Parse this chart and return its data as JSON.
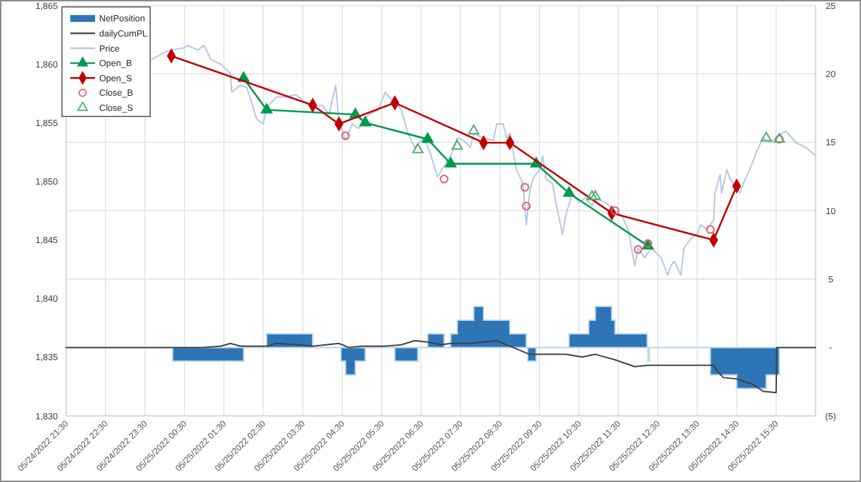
{
  "chart_data": {
    "type": "line",
    "xlim": [
      "2022-05-24T21:30",
      "2022-05-25T16:30"
    ],
    "xticks": [
      {
        "value": "2022-05-24T21:30",
        "label": "05/24/2022 21:30"
      },
      {
        "value": "2022-05-24T22:30",
        "label": "05/24/2022 22:30"
      },
      {
        "value": "2022-05-24T23:30",
        "label": "05/24/2022 23:30"
      },
      {
        "value": "2022-05-25T00:30",
        "label": "05/25/2022 00:30"
      },
      {
        "value": "2022-05-25T01:30",
        "label": "05/25/2022 01:30"
      },
      {
        "value": "2022-05-25T02:30",
        "label": "05/25/2022 02:30"
      },
      {
        "value": "2022-05-25T03:30",
        "label": "05/25/2022 03:30"
      },
      {
        "value": "2022-05-25T04:30",
        "label": "05/25/2022 04:30"
      },
      {
        "value": "2022-05-25T05:30",
        "label": "05/25/2022 05:30"
      },
      {
        "value": "2022-05-25T06:30",
        "label": "05/25/2022 06:30"
      },
      {
        "value": "2022-05-25T07:30",
        "label": "05/25/2022 07:30"
      },
      {
        "value": "2022-05-25T08:30",
        "label": "05/25/2022 08:30"
      },
      {
        "value": "2022-05-25T09:30",
        "label": "05/25/2022 09:30"
      },
      {
        "value": "2022-05-25T10:30",
        "label": "05/25/2022 10:30"
      },
      {
        "value": "2022-05-25T11:30",
        "label": "05/25/2022 11:30"
      },
      {
        "value": "2022-05-25T12:30",
        "label": "05/25/2022 12:30"
      },
      {
        "value": "2022-05-25T13:30",
        "label": "05/25/2022 13:30"
      },
      {
        "value": "2022-05-25T14:30",
        "label": "05/25/2022 14:30"
      },
      {
        "value": "2022-05-25T15:30",
        "label": "05/25/2022 15:30"
      }
    ],
    "ylim": [
      1830,
      1865
    ],
    "yticks": [
      {
        "value": 1830,
        "label": "1,830"
      },
      {
        "value": 1835,
        "label": "1,835"
      },
      {
        "value": 1840,
        "label": "1,840"
      },
      {
        "value": 1845,
        "label": "1,845"
      },
      {
        "value": 1850,
        "label": "1,850"
      },
      {
        "value": 1855,
        "label": "1,855"
      },
      {
        "value": 1860,
        "label": "1,860"
      },
      {
        "value": 1865,
        "label": "1,865"
      }
    ],
    "y2lim": [
      -5,
      25
    ],
    "y2ticks": [
      {
        "value": -5,
        "label": "(5)"
      },
      {
        "value": 0,
        "label": "-"
      },
      5,
      10,
      15,
      20,
      25
    ],
    "grid": true,
    "legend": "top left",
    "series": [
      {
        "name": "NetPosition",
        "type": "area",
        "axis": "y2",
        "color": "#2e75b6",
        "x": [
          "2022-05-25T00:12",
          "2022-05-25T00:12",
          "2022-05-25T02:00",
          "2022-05-25T02:00",
          "2022-05-25T02:35",
          "2022-05-25T02:35",
          "2022-05-25T03:45",
          "2022-05-25T03:45",
          "2022-05-25T04:28",
          "2022-05-25T04:28",
          "2022-05-25T04:35",
          "2022-05-25T04:35",
          "2022-05-25T04:50",
          "2022-05-25T04:50",
          "2022-05-25T05:05",
          "2022-05-25T05:05",
          "2022-05-25T05:50",
          "2022-05-25T05:50",
          "2022-05-25T06:25",
          "2022-05-25T06:25",
          "2022-05-25T06:40",
          "2022-05-25T06:40",
          "2022-05-25T07:05",
          "2022-05-25T07:05",
          "2022-05-25T07:15",
          "2022-05-25T07:15",
          "2022-05-25T07:25",
          "2022-05-25T07:25",
          "2022-05-25T07:50",
          "2022-05-25T07:50",
          "2022-05-25T08:05",
          "2022-05-25T08:05",
          "2022-05-25T08:45",
          "2022-05-25T08:45",
          "2022-05-25T09:10",
          "2022-05-25T09:10",
          "2022-05-25T09:12",
          "2022-05-25T09:12",
          "2022-05-25T09:25",
          "2022-05-25T09:25",
          "2022-05-25T10:15",
          "2022-05-25T10:15",
          "2022-05-25T10:45",
          "2022-05-25T10:45",
          "2022-05-25T10:55",
          "2022-05-25T10:55",
          "2022-05-25T11:20",
          "2022-05-25T11:20",
          "2022-05-25T11:25",
          "2022-05-25T11:25",
          "2022-05-25T12:14",
          "2022-05-25T12:14",
          "2022-05-25T12:15",
          "2022-05-25T12:15",
          "2022-05-25T12:17",
          "2022-05-25T12:17",
          "2022-05-25T13:50",
          "2022-05-25T13:50",
          "2022-05-25T14:30",
          "2022-05-25T14:30",
          "2022-05-25T15:15",
          "2022-05-25T15:15",
          "2022-05-25T15:35",
          "2022-05-25T15:35"
        ],
        "values": [
          0,
          -1,
          -1,
          0,
          0,
          1,
          1,
          0,
          0,
          -1,
          -1,
          -2,
          -2,
          -1,
          -1,
          0,
          0,
          -1,
          -1,
          0,
          0,
          1,
          1,
          0,
          0,
          1,
          1,
          2,
          2,
          3,
          3,
          2,
          2,
          1,
          1,
          0,
          0,
          -1,
          -1,
          0,
          0,
          1,
          1,
          2,
          2,
          3,
          3,
          2,
          2,
          1,
          1,
          0,
          0,
          -1,
          -1,
          0,
          0,
          -2,
          -2,
          -3,
          -3,
          -2,
          -2,
          0
        ]
      },
      {
        "name": "dailyCumPL",
        "type": "line",
        "axis": "y2",
        "color": "#404040",
        "x": [
          "2022-05-24T21:30",
          "2022-05-25T00:12",
          "2022-05-25T00:57",
          "2022-05-25T01:25",
          "2022-05-25T01:40",
          "2022-05-25T01:55",
          "2022-05-25T02:35",
          "2022-05-25T02:50",
          "2022-05-25T03:25",
          "2022-05-25T03:45",
          "2022-05-25T04:25",
          "2022-05-25T04:40",
          "2022-05-25T05:00",
          "2022-05-25T05:35",
          "2022-05-25T06:00",
          "2022-05-25T06:20",
          "2022-05-25T06:40",
          "2022-05-25T07:00",
          "2022-05-25T07:15",
          "2022-05-25T07:45",
          "2022-05-25T08:05",
          "2022-05-25T08:25",
          "2022-05-25T08:45",
          "2022-05-25T09:00",
          "2022-05-25T09:15",
          "2022-05-25T10:10",
          "2022-05-25T10:35",
          "2022-05-25T10:55",
          "2022-05-25T11:25",
          "2022-05-25T11:55",
          "2022-05-25T12:15",
          "2022-05-25T13:55",
          "2022-05-25T14:00",
          "2022-05-25T14:10",
          "2022-05-25T14:30",
          "2022-05-25T14:55",
          "2022-05-25T15:10",
          "2022-05-25T15:30",
          "2022-05-25T15:31",
          "2022-05-25T16:30"
        ],
        "values": [
          0,
          0,
          0,
          0.1,
          0.3,
          0.1,
          0.1,
          0.3,
          0.2,
          0.1,
          0.3,
          0,
          0.1,
          0.1,
          0.2,
          0.5,
          0.4,
          0.2,
          0.3,
          0.3,
          0.4,
          0.5,
          0.1,
          -0.2,
          -0.5,
          -0.5,
          -0.7,
          -0.5,
          -0.9,
          -1.4,
          -1.3,
          -1.3,
          -1.7,
          -2.2,
          -2.3,
          -2.7,
          -3.2,
          -3.3,
          0,
          0
        ]
      },
      {
        "name": "Price",
        "type": "line",
        "color": "#b4c7e7",
        "x": [
          "2022-05-24T23:40",
          "2022-05-25T00:00",
          "2022-05-25T00:10",
          "2022-05-25T00:30",
          "2022-05-25T00:35",
          "2022-05-25T00:50",
          "2022-05-25T01:00",
          "2022-05-25T01:10",
          "2022-05-25T01:25",
          "2022-05-25T01:40",
          "2022-05-25T01:42",
          "2022-05-25T01:55",
          "2022-05-25T02:05",
          "2022-05-25T02:20",
          "2022-05-25T02:30",
          "2022-05-25T02:35",
          "2022-05-25T02:50",
          "2022-05-25T03:05",
          "2022-05-25T03:20",
          "2022-05-25T03:30",
          "2022-05-25T03:45",
          "2022-05-25T04:00",
          "2022-05-25T04:10",
          "2022-05-25T04:20",
          "2022-05-25T04:25",
          "2022-05-25T04:35",
          "2022-05-25T04:45",
          "2022-05-25T04:55",
          "2022-05-25T05:10",
          "2022-05-25T05:25",
          "2022-05-25T05:35",
          "2022-05-25T05:45",
          "2022-05-25T06:00",
          "2022-05-25T06:10",
          "2022-05-25T06:20",
          "2022-05-25T06:35",
          "2022-05-25T06:45",
          "2022-05-25T06:55",
          "2022-05-25T07:15",
          "2022-05-25T07:25",
          "2022-05-25T07:35",
          "2022-05-25T07:45",
          "2022-05-25T07:50",
          "2022-05-25T08:05",
          "2022-05-25T08:20",
          "2022-05-25T08:25",
          "2022-05-25T08:35",
          "2022-05-25T08:40",
          "2022-05-25T08:45",
          "2022-05-25T08:55",
          "2022-05-25T09:05",
          "2022-05-25T09:10",
          "2022-05-25T09:15",
          "2022-05-25T09:20",
          "2022-05-25T09:30",
          "2022-05-25T09:35",
          "2022-05-25T09:40",
          "2022-05-25T09:50",
          "2022-05-25T09:55",
          "2022-05-25T10:05",
          "2022-05-25T10:10",
          "2022-05-25T10:20",
          "2022-05-25T10:30",
          "2022-05-25T10:40",
          "2022-05-25T10:50",
          "2022-05-25T10:55",
          "2022-05-25T11:10",
          "2022-05-25T11:25",
          "2022-05-25T11:35",
          "2022-05-25T11:45",
          "2022-05-25T11:55",
          "2022-05-25T12:00",
          "2022-05-25T12:10",
          "2022-05-25T12:20",
          "2022-05-25T12:35",
          "2022-05-25T12:45",
          "2022-05-25T12:50",
          "2022-05-25T12:55",
          "2022-05-25T13:05",
          "2022-05-25T13:10",
          "2022-05-25T13:20",
          "2022-05-25T13:30",
          "2022-05-25T13:35",
          "2022-05-25T13:45",
          "2022-05-25T13:55",
          "2022-05-25T13:57",
          "2022-05-25T14:05",
          "2022-05-25T14:07",
          "2022-05-25T14:15",
          "2022-05-25T14:20",
          "2022-05-25T14:30",
          "2022-05-25T14:35",
          "2022-05-25T14:40",
          "2022-05-25T14:50",
          "2022-05-25T15:00",
          "2022-05-25T15:10",
          "2022-05-25T15:20",
          "2022-05-25T15:30",
          "2022-05-25T15:45",
          "2022-05-25T16:00",
          "2022-05-25T16:15",
          "2022-05-25T16:30"
        ],
        "values": [
          1860.4,
          1861.0,
          1861.2,
          1861.4,
          1861.6,
          1861.2,
          1861.6,
          1860.4,
          1860.0,
          1859.2,
          1857.6,
          1858.2,
          1858.0,
          1855.3,
          1854.9,
          1856.3,
          1857.2,
          1857.2,
          1857.4,
          1856.9,
          1856.3,
          1856.5,
          1855.7,
          1858.2,
          1855.1,
          1853.5,
          1854.9,
          1854.5,
          1855.7,
          1856.1,
          1857.6,
          1857.0,
          1856.1,
          1854.1,
          1852.9,
          1853.7,
          1852.2,
          1850.4,
          1852.2,
          1853.7,
          1853.5,
          1852.9,
          1854.1,
          1853.7,
          1853.5,
          1854.9,
          1854.9,
          1853.7,
          1854.1,
          1851.0,
          1849.8,
          1846.3,
          1849.0,
          1850.2,
          1851.0,
          1852.2,
          1850.2,
          1849.8,
          1848.2,
          1845.5,
          1847.1,
          1849.0,
          1848.2,
          1848.6,
          1847.9,
          1848.6,
          1848.2,
          1847.5,
          1847.1,
          1845.9,
          1842.8,
          1844.3,
          1843.5,
          1844.3,
          1843.5,
          1842.0,
          1842.8,
          1843.2,
          1842.0,
          1844.3,
          1845.1,
          1845.5,
          1846.3,
          1845.9,
          1846.7,
          1849.0,
          1850.6,
          1849.0,
          1851.0,
          1850.2,
          1849.4,
          1849.0,
          1849.8,
          1851.0,
          1852.5,
          1853.7,
          1853.3,
          1853.7,
          1854.3,
          1853.3,
          1852.9,
          1852.2
        ]
      },
      {
        "name": "Open_B",
        "type": "line",
        "marker": "triangle",
        "color": "#00994c",
        "x": [
          "2022-05-25T02:00",
          "2022-05-25T02:35",
          "2022-05-25T04:50",
          "2022-05-25T05:05",
          "2022-05-25T06:40",
          "2022-05-25T07:15",
          "2022-05-25T09:25",
          "2022-05-25T10:15",
          "2022-05-25T12:15"
        ],
        "values": [
          1858.8,
          1856.1,
          1855.7,
          1855.0,
          1853.6,
          1851.5,
          1851.5,
          1849.0,
          1844.5
        ]
      },
      {
        "name": "Open_S",
        "type": "line",
        "marker": "diamond",
        "color": "#c00000",
        "x": [
          "2022-05-25T00:10",
          "2022-05-25T03:45",
          "2022-05-25T04:25",
          "2022-05-25T05:50",
          "2022-05-25T08:05",
          "2022-05-25T08:45",
          "2022-05-25T11:20",
          "2022-05-25T13:55",
          "2022-05-25T14:30"
        ],
        "values": [
          1860.7,
          1856.5,
          1854.9,
          1856.7,
          1853.3,
          1853.3,
          1847.3,
          1845.0,
          1849.6
        ]
      },
      {
        "name": "Close_B",
        "type": "scatter",
        "marker": "circle",
        "color": "#e06070",
        "x": [
          "2022-05-25T04:35",
          "2022-05-25T07:05",
          "2022-05-25T09:08",
          "2022-05-25T09:10",
          "2022-05-25T11:25",
          "2022-05-25T12:00",
          "2022-05-25T12:15",
          "2022-05-25T13:50",
          "2022-05-25T15:35"
        ],
        "values": [
          1853.9,
          1850.2,
          1849.5,
          1847.9,
          1847.5,
          1844.2,
          1844.7,
          1845.9,
          1853.6
        ]
      },
      {
        "name": "Close_S",
        "type": "scatter",
        "marker": "triangle",
        "color": "#4caf6a",
        "x": [
          "2022-05-25T06:25",
          "2022-05-25T07:25",
          "2022-05-25T07:50",
          "2022-05-25T10:50",
          "2022-05-25T10:55",
          "2022-05-25T15:15",
          "2022-05-25T15:35"
        ],
        "values": [
          1852.7,
          1853.0,
          1854.3,
          1848.7,
          1848.7,
          1853.7,
          1853.6
        ]
      }
    ]
  }
}
